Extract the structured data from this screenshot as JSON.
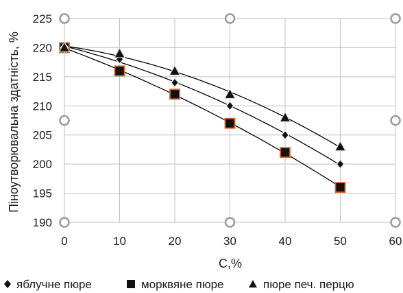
{
  "chart_data": {
    "type": "scatter",
    "xlabel": "C,%",
    "ylabel": "Піноутворювальна здатність, %",
    "xlim": [
      0,
      60
    ],
    "ylim": [
      190,
      225
    ],
    "x_ticks": [
      "0",
      "10",
      "20",
      "30",
      "40",
      "50",
      "60"
    ],
    "y_ticks": [
      "190",
      "195",
      "200",
      "205",
      "210",
      "215",
      "220",
      "225"
    ],
    "grid": "both",
    "trendlines": true,
    "legend_position": "bottom",
    "series": [
      {
        "name": "яблучне пюре",
        "marker": "diamond",
        "color": "#000000",
        "x": [
          0,
          10,
          20,
          30,
          40,
          50
        ],
        "y": [
          220,
          218,
          214,
          210,
          205,
          200
        ]
      },
      {
        "name": "морквяне пюре",
        "marker": "square",
        "color": "#000000",
        "edge_color": "#d9622b",
        "x": [
          0,
          10,
          20,
          30,
          40,
          50
        ],
        "y": [
          220,
          216,
          212,
          207,
          202,
          196
        ]
      },
      {
        "name": "пюре печ. перцю",
        "marker": "triangle",
        "color": "#000000",
        "x": [
          0,
          10,
          20,
          30,
          40,
          50
        ],
        "y": [
          220,
          219,
          216,
          212,
          208,
          203
        ]
      }
    ]
  }
}
